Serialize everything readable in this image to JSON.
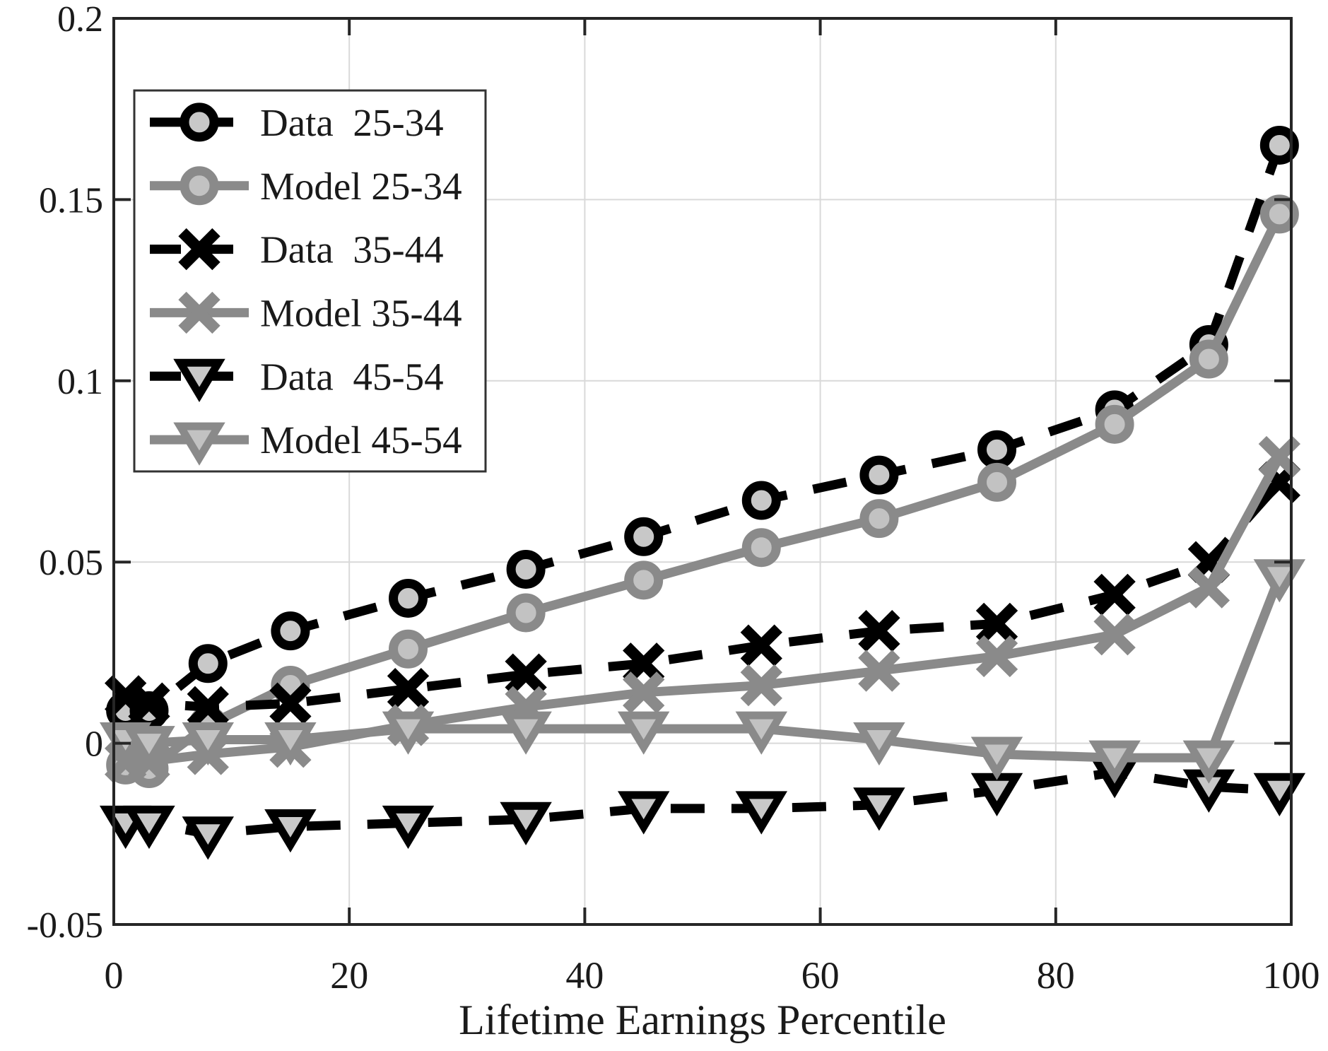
{
  "figure": {
    "background": "#ffffff",
    "axis_color": "#262626",
    "grid_color": "#d9d9d9",
    "text_color": "#1a1a1a",
    "legend_border_color": "#333333",
    "marker_fill": "#c8c8c8",
    "data_color": "#000000",
    "model_color": "#8a8a8a"
  },
  "chart_data": {
    "type": "line",
    "title": "",
    "xlabel": "Lifetime Earnings Percentile",
    "ylabel": "",
    "xlim": [
      0,
      100
    ],
    "ylim": [
      -0.05,
      0.2
    ],
    "grid": true,
    "legend_position": "top-left",
    "x_ticks": [
      0,
      20,
      40,
      60,
      80,
      100
    ],
    "x_tick_labels": [
      "0",
      "20",
      "40",
      "60",
      "80",
      "100"
    ],
    "y_ticks": [
      -0.05,
      0,
      0.05,
      0.1,
      0.15,
      0.2
    ],
    "y_tick_labels": [
      "-0.05",
      "0",
      "0.05",
      "0.1",
      "0.15",
      "0.2"
    ],
    "x": [
      1,
      3,
      8,
      15,
      25,
      35,
      45,
      55,
      65,
      75,
      85,
      93,
      99
    ],
    "series": [
      {
        "name": "Data  25-34",
        "line": "dashed",
        "color": "#000000",
        "marker": "circle",
        "marker_fill": "#c8c8c8",
        "values": [
          0.009,
          0.009,
          0.022,
          0.031,
          0.04,
          0.048,
          0.057,
          0.067,
          0.074,
          0.081,
          0.092,
          0.11,
          0.165
        ]
      },
      {
        "name": "Model 25-34",
        "line": "solid",
        "color": "#8a8a8a",
        "marker": "circle",
        "marker_fill": "#c2c2c2",
        "values": [
          -0.006,
          -0.007,
          0.005,
          0.016,
          0.026,
          0.036,
          0.045,
          0.054,
          0.062,
          0.072,
          0.088,
          0.106,
          0.146
        ]
      },
      {
        "name": "Data  35-44",
        "line": "dashed",
        "color": "#000000",
        "marker": "x",
        "marker_fill": "none",
        "values": [
          0.013,
          0.011,
          0.01,
          0.011,
          0.015,
          0.019,
          0.022,
          0.027,
          0.031,
          0.033,
          0.041,
          0.05,
          0.072
        ]
      },
      {
        "name": "Model 35-44",
        "line": "solid",
        "color": "#8a8a8a",
        "marker": "x",
        "marker_fill": "none",
        "values": [
          -0.005,
          -0.005,
          -0.003,
          -0.001,
          0.005,
          0.01,
          0.014,
          0.016,
          0.02,
          0.024,
          0.03,
          0.043,
          0.079
        ]
      },
      {
        "name": "Data  45-54",
        "line": "dashed",
        "color": "#000000",
        "marker": "triangle-down",
        "marker_fill": "#c8c8c8",
        "values": [
          -0.022,
          -0.022,
          -0.025,
          -0.023,
          -0.022,
          -0.021,
          -0.018,
          -0.018,
          -0.017,
          -0.013,
          -0.008,
          -0.012,
          -0.013
        ]
      },
      {
        "name": "Model 45-54",
        "line": "solid",
        "color": "#8a8a8a",
        "marker": "triangle-down",
        "marker_fill": "#c2c2c2",
        "values": [
          0.001,
          0.0,
          0.001,
          0.001,
          0.004,
          0.004,
          0.004,
          0.004,
          0.001,
          -0.003,
          -0.004,
          -0.004,
          0.046
        ]
      }
    ]
  }
}
